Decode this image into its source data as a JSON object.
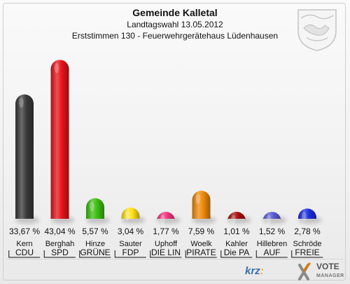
{
  "chart_data": {
    "type": "bar",
    "title": "Gemeinde Kalletal",
    "subtitle": "Landtagswahl 13.05.2012",
    "subtitle2": "Erststimmen 130 - Feuerwehrgerätehaus Lüdenhausen",
    "ylim": [
      0,
      45
    ],
    "grid": false,
    "legend": "none",
    "categories": [
      "Kern",
      "Berghah",
      "Hinze",
      "Sauter",
      "Uphoff",
      "Woelk",
      "Kahler",
      "Hillebren",
      "Schröde"
    ],
    "parties": [
      "CDU",
      "SPD",
      "GRÜNE",
      "FDP",
      "DIE LIN",
      "PIRATE",
      "Die PA",
      "AUF",
      "FREIE"
    ],
    "values": [
      33.67,
      43.04,
      5.57,
      3.04,
      1.77,
      7.59,
      1.01,
      1.52,
      2.78
    ],
    "value_labels": [
      "33,67 %",
      "43,04 %",
      "5,57 %",
      "3,04 %",
      "1,77 %",
      "7,59 %",
      "1,01 %",
      "1,52 %",
      "2,78 %"
    ],
    "colors": [
      "#3a3a3a",
      "#e8141b",
      "#3cc010",
      "#ffe21a",
      "#f0357d",
      "#f08a0a",
      "#a80c0c",
      "#5a5ad2",
      "#1a2ee0"
    ]
  }
}
